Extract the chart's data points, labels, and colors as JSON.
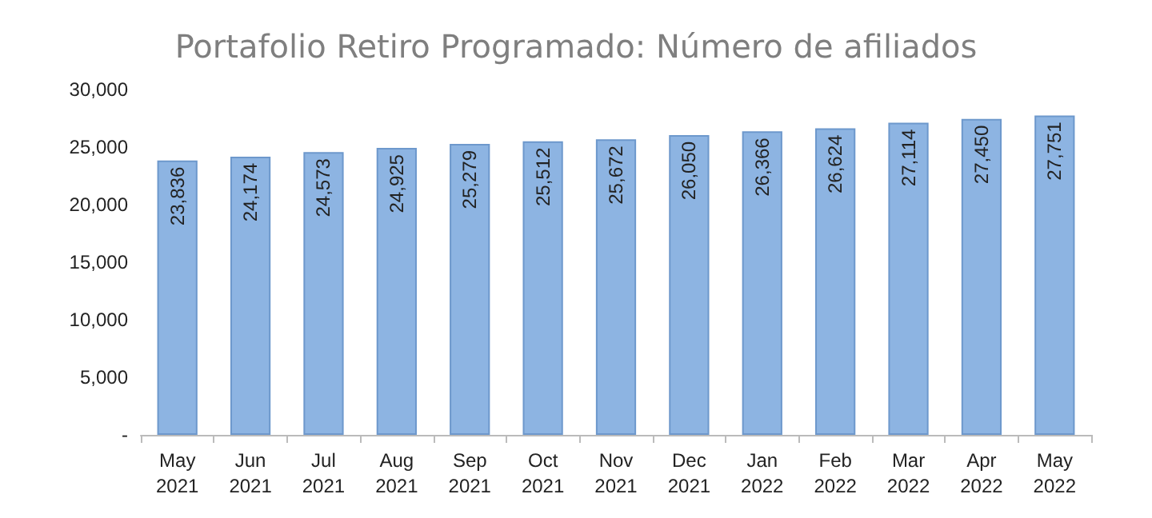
{
  "chart_data": {
    "type": "bar",
    "title": "Portafolio Retiro Programado: Número de afiliados",
    "categories": [
      "May\n2021",
      "Jun\n2021",
      "Jul\n2021",
      "Aug\n2021",
      "Sep\n2021",
      "Oct\n2021",
      "Nov\n2021",
      "Dec\n2021",
      "Jan\n2022",
      "Feb\n2022",
      "Mar\n2022",
      "Apr\n2022",
      "May\n2022"
    ],
    "values": [
      23836,
      24174,
      24573,
      24925,
      25279,
      25512,
      25672,
      26050,
      26366,
      26624,
      27114,
      27450,
      27751
    ],
    "value_labels": [
      "23,836",
      "24,174",
      "24,573",
      "24,925",
      "25,279",
      "25,512",
      "25,672",
      "26,050",
      "26,366",
      "26,624",
      "27,114",
      "27,450",
      "27,751"
    ],
    "color": "#8db4e2",
    "ylim": [
      0,
      30000
    ],
    "yticks": [
      {
        "value": 0,
        "label": "-"
      },
      {
        "value": 5000,
        "label": "5,000"
      },
      {
        "value": 10000,
        "label": "10,000"
      },
      {
        "value": 15000,
        "label": "15,000"
      },
      {
        "value": 20000,
        "label": "20,000"
      },
      {
        "value": 25000,
        "label": "25,000"
      },
      {
        "value": 30000,
        "label": "30,000"
      }
    ],
    "grid": false
  }
}
